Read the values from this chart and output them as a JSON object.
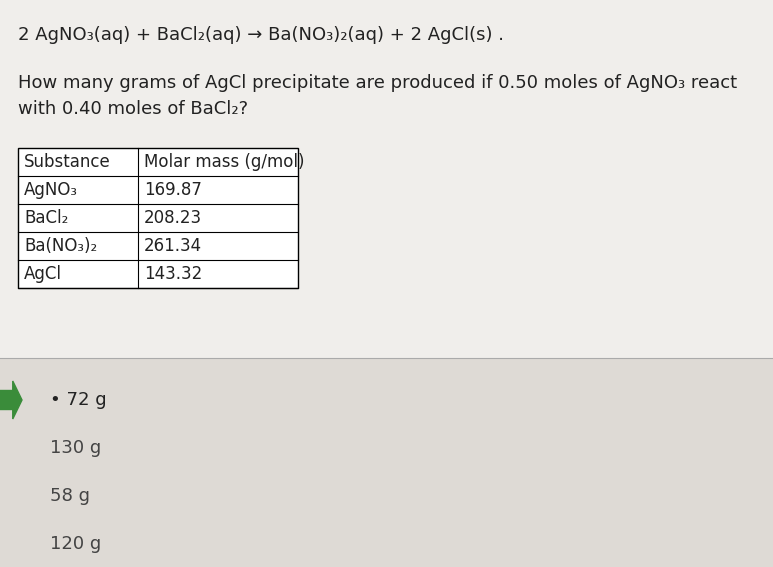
{
  "fig_width": 7.73,
  "fig_height": 5.67,
  "dpi": 100,
  "bg_color": "#cac8c3",
  "top_bg": "#f0eeeb",
  "bottom_bg": "#dedad5",
  "divider_color": "#aaaaaa",
  "text_color": "#222222",
  "answer_text_color": "#444444",
  "equation": "2 AgNO₃(aq) + BaCl₂(aq) → Ba(NO₃)₂(aq) + 2 AgCl(s) .",
  "question1": "How many grams of AgCl precipitate are produced if 0.50 moles of AgNO₃ react",
  "question2": "with 0.40 moles of BaCl₂?",
  "table_headers": [
    "Substance",
    "Molar mass (g/mol)"
  ],
  "table_rows": [
    [
      "AgNO₃",
      "169.87"
    ],
    [
      "BaCl₂",
      "208.23"
    ],
    [
      "Ba(NO₃)₂",
      "261.34"
    ],
    [
      "AgCl",
      "143.32"
    ]
  ],
  "answers": [
    "72 g",
    "130 g",
    "58 g",
    "120 g"
  ],
  "selected": 0,
  "arrow_color": "#3a8c3a",
  "eq_fs": 13,
  "q_fs": 13,
  "tbl_fs": 12,
  "ans_fs": 13
}
